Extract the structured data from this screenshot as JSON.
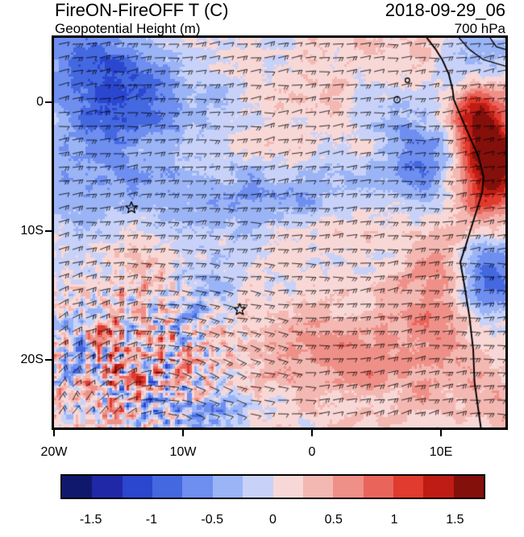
{
  "header": {
    "title": "FireON-FireOFF T (C)",
    "datetime": "2018-09-29_06",
    "subtitle": "Geopotential Height (m)",
    "level": "700 hPa"
  },
  "map": {
    "lon_min": -20,
    "lon_max": 15,
    "lat_min": -25.25,
    "lat_max": 5
  },
  "axes": {
    "y_ticks": [
      {
        "label": "0",
        "lat": 0
      },
      {
        "label": "10S",
        "lat": -10
      },
      {
        "label": "20S",
        "lat": -20
      }
    ],
    "x_ticks": [
      {
        "label": "20W",
        "lon": -20
      },
      {
        "label": "10W",
        "lon": -10
      },
      {
        "label": "0",
        "lon": 0
      },
      {
        "label": "10E",
        "lon": 10
      }
    ]
  },
  "colorbar": {
    "colors": [
      "#10186e",
      "#2028a8",
      "#2b46cf",
      "#4468e0",
      "#6e8ef0",
      "#9ab4f6",
      "#c8d2f8",
      "#f8d8d6",
      "#f4b8b2",
      "#ef9088",
      "#e9655c",
      "#e13a2e",
      "#bf1c14",
      "#83100b"
    ],
    "tick_labels": [
      "-1.5",
      "-1",
      "-0.5",
      "0",
      "0.5",
      "1",
      "1.5"
    ],
    "bin_width": 0.25,
    "range": [
      -1.75,
      1.75
    ]
  },
  "chart_data": {
    "type": "heatmap",
    "title": "FireON-FireOFF T (C)",
    "subtitle": "Geopotential Height (m)",
    "valid_time": "2018-09-29_06",
    "level": "700 hPa",
    "units": "C",
    "lon_range": [
      -20,
      15
    ],
    "lat_range": [
      -25.25,
      5
    ],
    "colorbar_levels": [
      -1.5,
      -1,
      -0.5,
      0,
      0.5,
      1,
      1.5
    ],
    "overlays": [
      "wind-barbs",
      "coastline",
      "country-borders",
      "station-stars"
    ],
    "markers": {
      "stars": [
        {
          "lon": -14.0,
          "lat": -8.2
        },
        {
          "lon": -5.6,
          "lat": -16.1
        }
      ]
    },
    "islands": [
      {
        "lon": 6.6,
        "lat": 0.2,
        "r": 3.8
      },
      {
        "lon": 7.4,
        "lat": 1.7,
        "r": 2.8
      }
    ],
    "coastline_lonlat": [
      [
        8.9,
        5.0
      ],
      [
        9.6,
        4.1
      ],
      [
        10.1,
        3.3
      ],
      [
        10.6,
        2.2
      ],
      [
        10.9,
        1.0
      ],
      [
        11.0,
        0.2
      ],
      [
        11.5,
        -1.0
      ],
      [
        12.1,
        -2.4
      ],
      [
        12.9,
        -4.2
      ],
      [
        13.3,
        -5.8
      ],
      [
        13.2,
        -7.0
      ],
      [
        12.8,
        -8.3
      ],
      [
        12.2,
        -10.2
      ],
      [
        11.9,
        -11.2
      ],
      [
        11.5,
        -12.4
      ],
      [
        11.8,
        -14.1
      ],
      [
        12.2,
        -16.6
      ],
      [
        12.5,
        -19.2
      ],
      [
        12.6,
        -21.7
      ],
      [
        12.9,
        -23.9
      ],
      [
        13.1,
        -25.3
      ]
    ],
    "borders_lonlat": [
      [
        [
          11.4,
          5.0
        ],
        [
          12.2,
          4.1
        ],
        [
          13.3,
          3.3
        ],
        [
          15.0,
          2.8
        ]
      ],
      [
        [
          13.8,
          5.0
        ],
        [
          14.3,
          4.3
        ],
        [
          15.0,
          4.1
        ]
      ]
    ],
    "field_model": {
      "base": 0.18,
      "noise": [
        {
          "seed": 11,
          "gw": 6,
          "gh": 5,
          "amp": 0.2
        },
        {
          "seed": 23,
          "gw": 16,
          "gh": 14,
          "amp": 0.17
        },
        {
          "seed": 37,
          "gw": 40,
          "gh": 52,
          "amp": 0.14
        }
      ],
      "features": [
        {
          "cx": 0.07,
          "cy": 0.1,
          "sx": 0.1,
          "sy": 0.12,
          "amp": -0.8
        },
        {
          "cx": 0.22,
          "cy": 0.15,
          "sx": 0.13,
          "sy": 0.09,
          "amp": -0.55
        },
        {
          "cx": 0.1,
          "cy": 0.33,
          "sx": 0.1,
          "sy": 0.08,
          "amp": -0.4
        },
        {
          "cx": 0.28,
          "cy": 0.42,
          "sx": 0.26,
          "sy": 0.07,
          "amp": -0.45
        },
        {
          "cx": 0.62,
          "cy": 0.37,
          "sx": 0.18,
          "sy": 0.06,
          "amp": -0.4
        },
        {
          "cx": 0.83,
          "cy": 0.27,
          "sx": 0.07,
          "sy": 0.1,
          "amp": -0.75
        },
        {
          "cx": 0.92,
          "cy": 0.06,
          "sx": 0.06,
          "sy": 0.07,
          "amp": -0.5
        },
        {
          "cx": 0.965,
          "cy": 0.33,
          "sx": 0.05,
          "sy": 0.1,
          "amp": 1.9
        },
        {
          "cx": 0.92,
          "cy": 0.19,
          "sx": 0.05,
          "sy": 0.06,
          "amp": 1.0
        },
        {
          "cx": 0.96,
          "cy": 0.62,
          "sx": 0.05,
          "sy": 0.08,
          "amp": -1.1
        },
        {
          "cx": 0.86,
          "cy": 0.6,
          "sx": 0.05,
          "sy": 0.06,
          "amp": 0.5
        },
        {
          "cx": 0.84,
          "cy": 0.8,
          "sx": 0.09,
          "sy": 0.1,
          "amp": 0.45
        },
        {
          "cx": 0.6,
          "cy": 0.84,
          "sx": 0.22,
          "sy": 0.13,
          "amp": 0.25
        },
        {
          "cx": 0.33,
          "cy": 0.74,
          "sx": 0.1,
          "sy": 0.09,
          "amp": -0.35
        },
        {
          "cx": 0.38,
          "cy": 0.97,
          "sx": 0.13,
          "sy": 0.05,
          "amp": -0.55
        },
        {
          "cx": 0.05,
          "cy": 0.6,
          "sx": 0.06,
          "sy": 0.1,
          "amp": -0.35
        }
      ],
      "eddy": {
        "cx": 0.175,
        "cy": 0.845,
        "r": 0.2,
        "amp": 1.55,
        "seed": 53,
        "gw": 80,
        "gh": 70
      }
    },
    "wind_model": {
      "base_u": -1.0,
      "base_v": 0.12,
      "vortices": [
        {
          "cx": 0.175,
          "cy": 0.845,
          "strength": -1.8,
          "radius": 0.3
        },
        {
          "cx": 0.9,
          "cy": 1.1,
          "strength": -1.0,
          "radius": 0.45
        }
      ]
    }
  }
}
